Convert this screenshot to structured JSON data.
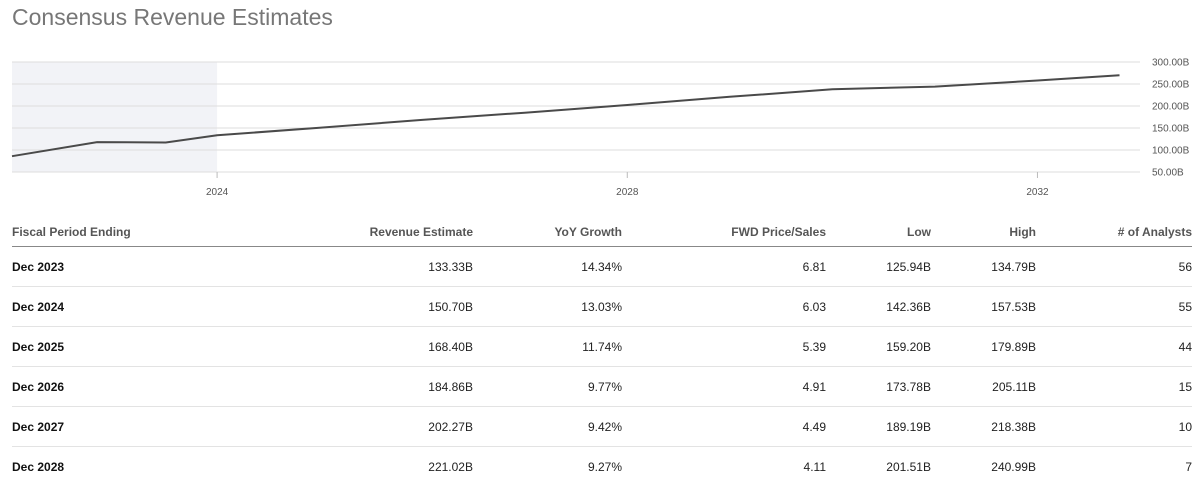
{
  "title": "Consensus Revenue Estimates",
  "chart_data": {
    "type": "line",
    "x": [
      2022.0,
      2022.83,
      2023.5,
      2024.0,
      2025.0,
      2026.0,
      2027.0,
      2028.0,
      2029.0,
      2030.0,
      2031.0,
      2032.0,
      2032.8
    ],
    "series": [
      {
        "values": [
          86,
          118,
          117,
          133.33,
          150.7,
          168.4,
          184.86,
          202.27,
          221.02,
          238,
          244,
          258,
          270
        ]
      }
    ],
    "shaded_region": {
      "x_start": 2022.0,
      "x_end": 2024.0
    },
    "y_ticks": [
      "300.00B",
      "250.00B",
      "200.00B",
      "150.00B",
      "100.00B",
      "50.00B"
    ],
    "y_tick_values": [
      300,
      250,
      200,
      150,
      100,
      50
    ],
    "x_ticks": [
      "2024",
      "2028",
      "2032"
    ],
    "x_tick_values": [
      2024,
      2028,
      2032
    ],
    "ylim": [
      50,
      300
    ],
    "xlim": [
      2022.0,
      2033.0
    ],
    "grid": true,
    "line_color": "#4a4a4a",
    "shade_color": "#f2f3f7"
  },
  "table": {
    "headers": [
      "Fiscal Period Ending",
      "Revenue Estimate",
      "YoY Growth",
      "FWD Price/Sales",
      "Low",
      "High",
      "# of Analysts"
    ],
    "rows": [
      [
        "Dec 2023",
        "133.33B",
        "14.34%",
        "6.81",
        "125.94B",
        "134.79B",
        "56"
      ],
      [
        "Dec 2024",
        "150.70B",
        "13.03%",
        "6.03",
        "142.36B",
        "157.53B",
        "55"
      ],
      [
        "Dec 2025",
        "168.40B",
        "11.74%",
        "5.39",
        "159.20B",
        "179.89B",
        "44"
      ],
      [
        "Dec 2026",
        "184.86B",
        "9.77%",
        "4.91",
        "173.78B",
        "205.11B",
        "15"
      ],
      [
        "Dec 2027",
        "202.27B",
        "9.42%",
        "4.49",
        "189.19B",
        "218.38B",
        "10"
      ],
      [
        "Dec 2028",
        "221.02B",
        "9.27%",
        "4.11",
        "201.51B",
        "240.99B",
        "7"
      ]
    ]
  }
}
